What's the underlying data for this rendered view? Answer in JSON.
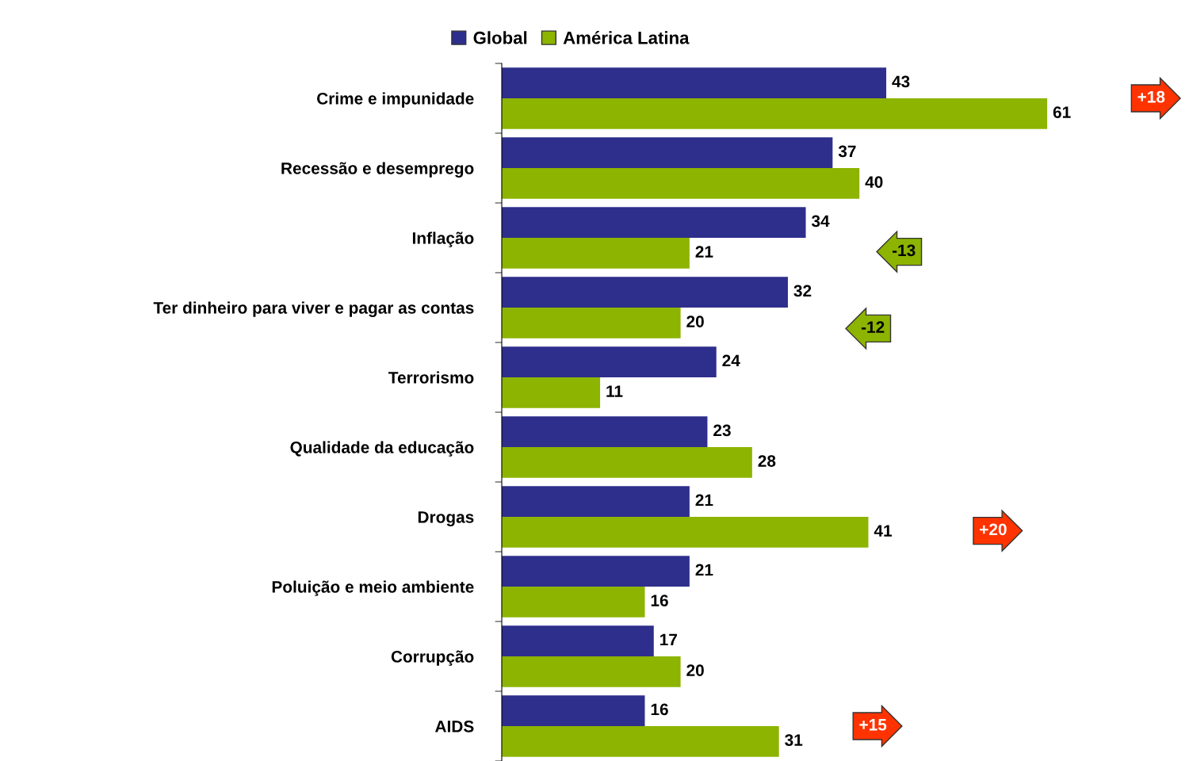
{
  "chart_data": {
    "type": "bar",
    "orientation": "horizontal",
    "data_labels": true,
    "legend": "top",
    "grid": false,
    "categories": [
      "Crime e impunidade",
      "Recessão e desemprego",
      "Inflação",
      "Ter dinheiro para viver e pagar as contas",
      "Terrorismo",
      "Qualidade da educação",
      "Drogas",
      "Poluição e meio ambiente",
      "Corrupção",
      "AIDS"
    ],
    "series": [
      {
        "name": "Global",
        "color": "#2e2e8c",
        "values": [
          43,
          37,
          34,
          32,
          24,
          23,
          21,
          21,
          17,
          16
        ]
      },
      {
        "name": "América Latina",
        "color": "#8cb400",
        "values": [
          61,
          40,
          21,
          20,
          11,
          28,
          41,
          16,
          20,
          31
        ]
      }
    ],
    "annotations": [
      "+18",
      "-13",
      "-12",
      "+20",
      "+15"
    ]
  }
}
